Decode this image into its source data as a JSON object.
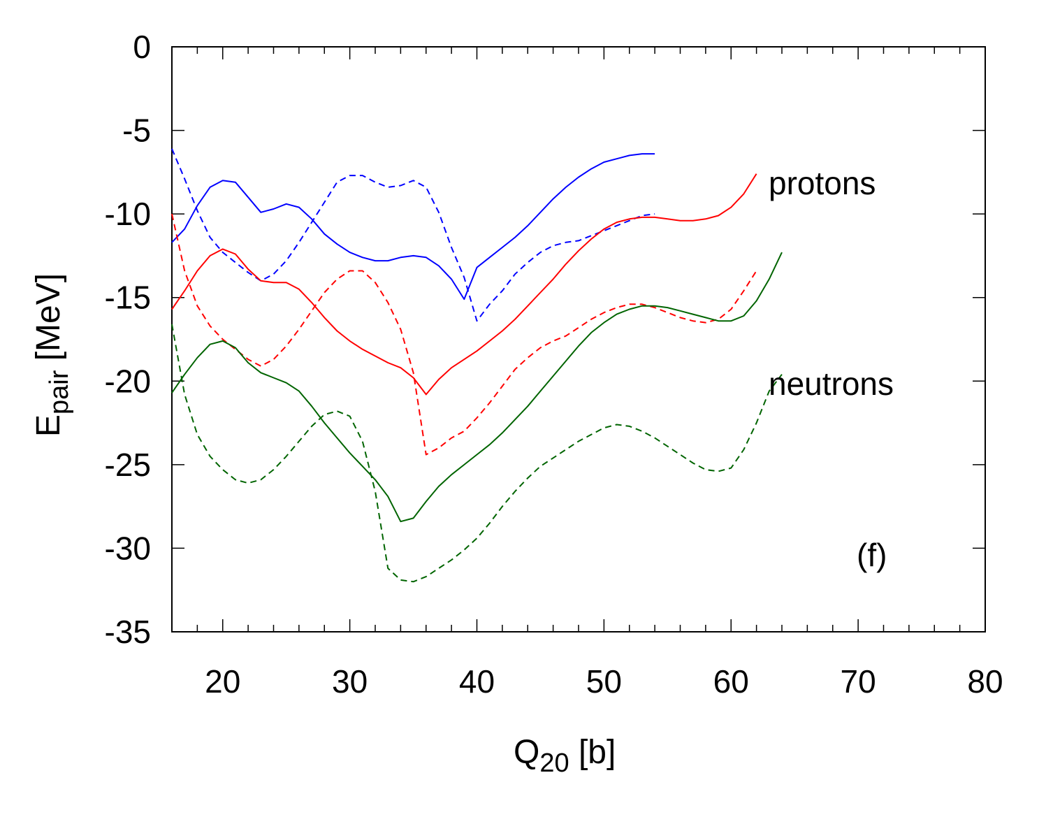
{
  "chart_data": {
    "type": "line",
    "xlabel": "Q",
    "xlabel_sub": "20",
    "xlabel_unit": " [b]",
    "ylabel": "E",
    "ylabel_sub": "pair",
    "ylabel_unit": " [MeV]",
    "xlim": [
      16,
      80
    ],
    "ylim": [
      -35,
      0
    ],
    "xticks": [
      20,
      30,
      40,
      50,
      60,
      70,
      80
    ],
    "yticks": [
      0,
      -5,
      -10,
      -15,
      -20,
      -25,
      -30,
      -35
    ],
    "xtick_labels": [
      "20",
      "30",
      "40",
      "50",
      "60",
      "70",
      "80"
    ],
    "ytick_labels": [
      "0",
      "-5",
      "-10",
      "-15",
      "-20",
      "-25",
      "-30",
      "-35"
    ],
    "x_minor_step": 2,
    "annotations": {
      "protons": "protons",
      "neutrons": "neutrons",
      "panel": "(f)"
    },
    "series": [
      {
        "name": "blue solid",
        "color": "#0000ff",
        "dash": false,
        "x": [
          16,
          17,
          18,
          19,
          20,
          21,
          22,
          23,
          24,
          25,
          26,
          27,
          28,
          29,
          30,
          31,
          32,
          33,
          34,
          35,
          36,
          37,
          38,
          39,
          40,
          41,
          42,
          43,
          44,
          45,
          46,
          47,
          48,
          49,
          50,
          51,
          52,
          53,
          54
        ],
        "y": [
          -11.7,
          -10.9,
          -9.5,
          -8.4,
          -8.0,
          -8.1,
          -9.0,
          -9.9,
          -9.7,
          -9.4,
          -9.6,
          -10.3,
          -11.2,
          -11.8,
          -12.3,
          -12.6,
          -12.8,
          -12.8,
          -12.6,
          -12.5,
          -12.6,
          -13.1,
          -13.9,
          -15.1,
          -13.2,
          -12.6,
          -12.0,
          -11.4,
          -10.7,
          -9.9,
          -9.1,
          -8.4,
          -7.8,
          -7.3,
          -6.9,
          -6.7,
          -6.5,
          -6.4,
          -6.4
        ]
      },
      {
        "name": "blue dashed",
        "color": "#0000ff",
        "dash": true,
        "x": [
          16,
          17,
          18,
          19,
          20,
          21,
          22,
          23,
          24,
          25,
          26,
          27,
          28,
          29,
          30,
          31,
          32,
          33,
          34,
          35,
          36,
          37,
          38,
          39,
          40,
          41,
          42,
          43,
          44,
          45,
          46,
          47,
          48,
          49,
          50,
          51,
          52,
          53,
          54
        ],
        "y": [
          -6.1,
          -7.9,
          -9.8,
          -11.4,
          -12.3,
          -12.9,
          -13.5,
          -14.0,
          -13.6,
          -12.8,
          -11.7,
          -10.5,
          -9.3,
          -8.1,
          -7.7,
          -7.7,
          -8.1,
          -8.4,
          -8.3,
          -8.0,
          -8.4,
          -9.9,
          -12.0,
          -13.8,
          -16.4,
          -15.4,
          -14.6,
          -13.6,
          -12.9,
          -12.3,
          -11.9,
          -11.7,
          -11.6,
          -11.3,
          -11.0,
          -10.7,
          -10.4,
          -10.1,
          -10.0
        ]
      },
      {
        "name": "red solid",
        "color": "#ff0000",
        "dash": false,
        "x": [
          16,
          17,
          18,
          19,
          20,
          21,
          22,
          23,
          24,
          25,
          26,
          27,
          28,
          29,
          30,
          31,
          32,
          33,
          34,
          35,
          36,
          37,
          38,
          39,
          40,
          41,
          42,
          43,
          44,
          45,
          46,
          47,
          48,
          49,
          50,
          51,
          52,
          53,
          54,
          55,
          56,
          57,
          58,
          59,
          60,
          61,
          62
        ],
        "y": [
          -15.7,
          -14.6,
          -13.4,
          -12.5,
          -12.1,
          -12.4,
          -13.3,
          -14.0,
          -14.1,
          -14.1,
          -14.5,
          -15.3,
          -16.2,
          -17.0,
          -17.6,
          -18.1,
          -18.5,
          -18.9,
          -19.2,
          -19.8,
          -20.8,
          -19.9,
          -19.2,
          -18.7,
          -18.2,
          -17.6,
          -17.0,
          -16.3,
          -15.5,
          -14.7,
          -13.9,
          -13.0,
          -12.2,
          -11.5,
          -10.9,
          -10.5,
          -10.3,
          -10.2,
          -10.2,
          -10.3,
          -10.4,
          -10.4,
          -10.3,
          -10.1,
          -9.6,
          -8.8,
          -7.6
        ]
      },
      {
        "name": "red dashed",
        "color": "#ff0000",
        "dash": true,
        "x": [
          16,
          17,
          18,
          19,
          20,
          21,
          22,
          23,
          24,
          25,
          26,
          27,
          28,
          29,
          30,
          31,
          32,
          33,
          34,
          35,
          36,
          37,
          38,
          39,
          40,
          41,
          42,
          43,
          44,
          45,
          46,
          47,
          48,
          49,
          50,
          51,
          52,
          53,
          54,
          55,
          56,
          57,
          58,
          59,
          60,
          61,
          62
        ],
        "y": [
          -10.0,
          -13.4,
          -15.5,
          -16.7,
          -17.5,
          -18.1,
          -18.7,
          -19.1,
          -18.7,
          -17.9,
          -16.9,
          -15.8,
          -14.7,
          -13.9,
          -13.4,
          -13.4,
          -14.1,
          -15.3,
          -16.9,
          -19.5,
          -24.4,
          -24.0,
          -23.4,
          -23.0,
          -22.2,
          -21.3,
          -20.3,
          -19.3,
          -18.6,
          -18.0,
          -17.6,
          -17.3,
          -16.8,
          -16.3,
          -15.9,
          -15.6,
          -15.4,
          -15.4,
          -15.6,
          -15.9,
          -16.2,
          -16.4,
          -16.5,
          -16.3,
          -15.7,
          -14.6,
          -13.4
        ]
      },
      {
        "name": "green solid",
        "color": "#006400",
        "dash": false,
        "x": [
          16,
          17,
          18,
          19,
          20,
          21,
          22,
          23,
          24,
          25,
          26,
          27,
          28,
          29,
          30,
          31,
          32,
          33,
          34,
          35,
          36,
          37,
          38,
          39,
          40,
          41,
          42,
          43,
          44,
          45,
          46,
          47,
          48,
          49,
          50,
          51,
          52,
          53,
          54,
          55,
          56,
          57,
          58,
          59,
          60,
          61,
          62,
          63,
          64
        ],
        "y": [
          -20.7,
          -19.6,
          -18.6,
          -17.8,
          -17.6,
          -18.0,
          -18.9,
          -19.5,
          -19.8,
          -20.1,
          -20.6,
          -21.5,
          -22.5,
          -23.4,
          -24.3,
          -25.1,
          -25.9,
          -26.9,
          -28.4,
          -28.2,
          -27.2,
          -26.3,
          -25.6,
          -25.0,
          -24.4,
          -23.8,
          -23.1,
          -22.3,
          -21.5,
          -20.6,
          -19.7,
          -18.8,
          -17.9,
          -17.1,
          -16.5,
          -16.0,
          -15.7,
          -15.5,
          -15.5,
          -15.6,
          -15.8,
          -16.0,
          -16.2,
          -16.4,
          -16.4,
          -16.1,
          -15.2,
          -13.9,
          -12.3
        ]
      },
      {
        "name": "green dashed",
        "color": "#006400",
        "dash": true,
        "x": [
          16,
          17,
          18,
          19,
          20,
          21,
          22,
          23,
          24,
          25,
          26,
          27,
          28,
          29,
          30,
          31,
          32,
          33,
          34,
          35,
          36,
          37,
          38,
          39,
          40,
          41,
          42,
          43,
          44,
          45,
          46,
          47,
          48,
          49,
          50,
          51,
          52,
          53,
          54,
          55,
          56,
          57,
          58,
          59,
          60,
          61,
          62,
          63,
          64
        ],
        "y": [
          -16.6,
          -20.8,
          -23.2,
          -24.5,
          -25.3,
          -25.9,
          -26.1,
          -25.9,
          -25.3,
          -24.5,
          -23.6,
          -22.7,
          -22.0,
          -21.8,
          -22.1,
          -23.6,
          -26.6,
          -31.2,
          -31.9,
          -32.0,
          -31.7,
          -31.2,
          -30.7,
          -30.1,
          -29.4,
          -28.5,
          -27.5,
          -26.6,
          -25.8,
          -25.1,
          -24.6,
          -24.1,
          -23.6,
          -23.2,
          -22.8,
          -22.6,
          -22.7,
          -23.0,
          -23.4,
          -23.9,
          -24.4,
          -24.9,
          -25.3,
          -25.4,
          -25.2,
          -24.1,
          -22.5,
          -20.6,
          -19.6
        ]
      }
    ]
  }
}
